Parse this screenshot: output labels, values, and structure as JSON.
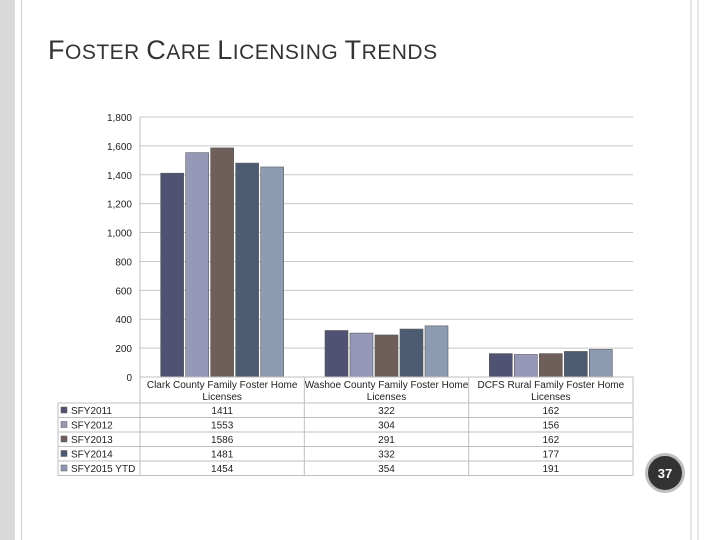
{
  "slide": {
    "title_parts": [
      {
        "text": "F",
        "style": "cap"
      },
      {
        "text": "OSTER ",
        "style": "sc"
      },
      {
        "text": "C",
        "style": "cap"
      },
      {
        "text": "ARE ",
        "style": "sc"
      },
      {
        "text": "L",
        "style": "cap"
      },
      {
        "text": "ICENSING ",
        "style": "sc"
      },
      {
        "text": "T",
        "style": "cap"
      },
      {
        "text": "RENDS",
        "style": "sc"
      }
    ],
    "page_number": "37"
  },
  "chart_data": {
    "type": "bar",
    "title": "",
    "xlabel": "",
    "ylabel": "",
    "ylim": [
      0,
      1800
    ],
    "yticks": [
      "0",
      "200",
      "400",
      "600",
      "800",
      "1,000",
      "1,200",
      "1,400",
      "1,600",
      "1,800"
    ],
    "grid": true,
    "legend_placement": "data-table-left",
    "categories": [
      [
        "Clark County Family Foster Home",
        "Licenses"
      ],
      [
        "Washoe County Family Foster Home",
        "Licenses"
      ],
      [
        "DCFS Rural Family Foster Home",
        "Licenses"
      ]
    ],
    "series": [
      {
        "name": "SFY2011",
        "values": [
          1411,
          322,
          162
        ],
        "color": "#4f5272"
      },
      {
        "name": "SFY2012",
        "values": [
          1553,
          304,
          156
        ],
        "color": "#9598b7"
      },
      {
        "name": "SFY2013",
        "values": [
          1586,
          291,
          162
        ],
        "color": "#6e5f5b"
      },
      {
        "name": "SFY2014",
        "values": [
          1481,
          332,
          177
        ],
        "color": "#4b5c72"
      },
      {
        "name": "SFY2015 YTD",
        "values": [
          1454,
          354,
          191
        ],
        "color": "#8c9bb2"
      }
    ]
  }
}
